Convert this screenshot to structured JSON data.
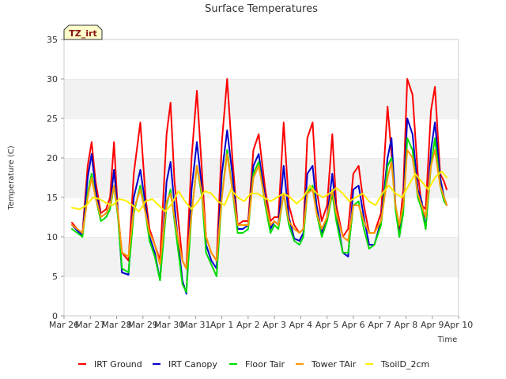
{
  "chart_data": {
    "type": "line",
    "title": "Surface Temperatures",
    "xlabel": "Time",
    "ylabel": "Temperature (C)",
    "badge": "TZ_irt",
    "ylim": [
      0,
      35
    ],
    "yticks": [
      0,
      5,
      10,
      15,
      20,
      25,
      30,
      35
    ],
    "xlim": [
      0,
      15
    ],
    "xtick_labels": [
      "Mar 26",
      "Mar 27",
      "Mar 28",
      "Mar 29",
      "Mar 30",
      "Mar 31",
      "Apr 1",
      "Apr 2",
      "Apr 3",
      "Apr 4",
      "Apr 5",
      "Apr 6",
      "Apr 7",
      "Apr 8",
      "Apr 9",
      "Apr 10"
    ],
    "grid": "horizontal bands",
    "legend_position": "bottom",
    "series": [
      {
        "name": "IRT Ground",
        "color": "#ff0000",
        "x": [
          0.3,
          0.5,
          0.7,
          0.9,
          1.05,
          1.2,
          1.4,
          1.6,
          1.75,
          1.9,
          2.05,
          2.2,
          2.45,
          2.65,
          2.9,
          3.1,
          3.25,
          3.45,
          3.65,
          3.9,
          4.05,
          4.2,
          4.35,
          4.5,
          4.65,
          4.85,
          5.05,
          5.25,
          5.4,
          5.6,
          5.8,
          6.0,
          6.2,
          6.4,
          6.6,
          6.8,
          7.0,
          7.2,
          7.4,
          7.65,
          7.85,
          8.0,
          8.15,
          8.35,
          8.55,
          8.75,
          8.95,
          9.1,
          9.25,
          9.45,
          9.6,
          9.8,
          10.0,
          10.2,
          10.35,
          10.6,
          10.8,
          11.0,
          11.2,
          11.4,
          11.6,
          11.8,
          12.05,
          12.3,
          12.45,
          12.6,
          12.75,
          12.9,
          13.05,
          13.25,
          13.45,
          13.6,
          13.75,
          13.95,
          14.1,
          14.3,
          14.45,
          14.55
        ],
        "y": [
          11.8,
          11.0,
          10.5,
          19.0,
          22.0,
          17.0,
          13.0,
          13.5,
          15.0,
          22.0,
          13.0,
          8.0,
          7.0,
          18.0,
          24.5,
          15.0,
          11.0,
          9.0,
          7.0,
          23.0,
          27.0,
          17.0,
          12.0,
          7.0,
          6.0,
          20.0,
          28.5,
          18.0,
          10.0,
          8.0,
          7.0,
          22.0,
          30.0,
          20.0,
          11.5,
          12.0,
          12.0,
          21.0,
          23.0,
          16.0,
          12.0,
          12.5,
          12.5,
          24.5,
          14.0,
          11.5,
          10.5,
          11.0,
          22.5,
          24.5,
          16.0,
          12.0,
          14.0,
          23.0,
          14.0,
          10.0,
          11.0,
          18.0,
          19.0,
          14.0,
          10.5,
          10.5,
          13.0,
          26.5,
          20.5,
          14.0,
          11.0,
          16.0,
          30.0,
          28.0,
          18.0,
          14.0,
          13.5,
          26.0,
          29.0,
          18.0,
          17.0,
          16.0
        ]
      },
      {
        "name": "IRT Canopy",
        "color": "#0000cc",
        "x": [
          0.3,
          0.5,
          0.7,
          0.9,
          1.05,
          1.2,
          1.4,
          1.6,
          1.75,
          1.9,
          2.05,
          2.2,
          2.45,
          2.65,
          2.9,
          3.1,
          3.25,
          3.45,
          3.65,
          3.9,
          4.05,
          4.2,
          4.35,
          4.5,
          4.65,
          4.85,
          5.05,
          5.25,
          5.4,
          5.6,
          5.8,
          6.0,
          6.2,
          6.4,
          6.6,
          6.8,
          7.0,
          7.2,
          7.4,
          7.65,
          7.85,
          8.0,
          8.15,
          8.35,
          8.55,
          8.75,
          8.95,
          9.1,
          9.25,
          9.45,
          9.6,
          9.8,
          10.0,
          10.2,
          10.35,
          10.6,
          10.8,
          11.0,
          11.2,
          11.4,
          11.6,
          11.8,
          12.05,
          12.3,
          12.45,
          12.6,
          12.75,
          12.9,
          13.05,
          13.25,
          13.45,
          13.6,
          13.75,
          13.95,
          14.1,
          14.3,
          14.45,
          14.55
        ],
        "y": [
          11.5,
          10.8,
          10.2,
          17.5,
          20.5,
          16.0,
          12.5,
          13.0,
          14.0,
          18.5,
          13.0,
          5.5,
          5.2,
          15.0,
          18.5,
          14.0,
          10.0,
          8.0,
          4.5,
          17.0,
          19.5,
          14.0,
          9.0,
          4.5,
          2.8,
          16.0,
          22.0,
          16.0,
          9.0,
          7.0,
          6.0,
          18.0,
          23.5,
          18.0,
          11.0,
          11.0,
          11.5,
          19.0,
          20.5,
          15.0,
          11.0,
          12.0,
          11.5,
          19.0,
          12.5,
          9.8,
          9.5,
          10.5,
          18.0,
          19.0,
          14.0,
          10.5,
          12.5,
          18.0,
          13.0,
          8.0,
          7.5,
          16.0,
          16.5,
          12.5,
          9.0,
          9.0,
          12.0,
          20.0,
          22.5,
          14.0,
          10.0,
          14.0,
          25.0,
          23.0,
          16.0,
          14.5,
          11.0,
          21.0,
          24.5,
          17.5,
          15.0,
          14.0
        ]
      },
      {
        "name": "Floor Tair",
        "color": "#00dd00",
        "x": [
          0.3,
          0.5,
          0.7,
          0.9,
          1.05,
          1.2,
          1.4,
          1.6,
          1.75,
          1.9,
          2.05,
          2.2,
          2.45,
          2.65,
          2.9,
          3.1,
          3.25,
          3.45,
          3.65,
          3.9,
          4.05,
          4.2,
          4.35,
          4.5,
          4.65,
          4.85,
          5.05,
          5.25,
          5.4,
          5.6,
          5.8,
          6.0,
          6.2,
          6.4,
          6.6,
          6.8,
          7.0,
          7.2,
          7.4,
          7.65,
          7.85,
          8.0,
          8.15,
          8.35,
          8.55,
          8.75,
          8.95,
          9.1,
          9.25,
          9.45,
          9.6,
          9.8,
          10.0,
          10.2,
          10.35,
          10.6,
          10.8,
          11.0,
          11.2,
          11.4,
          11.6,
          11.8,
          12.05,
          12.3,
          12.45,
          12.6,
          12.75,
          12.9,
          13.05,
          13.25,
          13.45,
          13.6,
          13.75,
          13.95,
          14.1,
          14.3,
          14.45,
          14.55
        ],
        "y": [
          11.0,
          10.5,
          10.0,
          15.5,
          18.0,
          15.0,
          12.0,
          12.5,
          13.5,
          16.5,
          12.5,
          6.0,
          5.5,
          13.0,
          16.5,
          13.0,
          9.5,
          7.5,
          4.5,
          14.0,
          16.0,
          12.0,
          8.0,
          4.0,
          3.0,
          13.0,
          19.0,
          15.0,
          8.0,
          6.5,
          5.0,
          15.0,
          21.0,
          16.0,
          10.5,
          10.5,
          11.0,
          18.0,
          19.5,
          14.0,
          10.5,
          11.5,
          11.0,
          15.5,
          11.5,
          9.5,
          9.0,
          10.0,
          15.5,
          16.5,
          13.0,
          10.0,
          12.0,
          15.5,
          12.0,
          8.0,
          8.0,
          14.0,
          14.5,
          11.0,
          8.5,
          9.0,
          11.5,
          19.0,
          20.0,
          13.5,
          10.0,
          13.0,
          22.5,
          21.0,
          15.0,
          13.5,
          11.0,
          19.0,
          22.5,
          16.5,
          14.5,
          14.0
        ]
      },
      {
        "name": "Tower TAir",
        "color": "#ff9900",
        "x": [
          0.3,
          0.5,
          0.7,
          0.9,
          1.05,
          1.2,
          1.4,
          1.6,
          1.75,
          1.9,
          2.05,
          2.2,
          2.45,
          2.65,
          2.9,
          3.1,
          3.25,
          3.45,
          3.65,
          3.9,
          4.05,
          4.2,
          4.35,
          4.5,
          4.65,
          4.85,
          5.05,
          5.25,
          5.4,
          5.6,
          5.8,
          6.0,
          6.2,
          6.4,
          6.6,
          6.8,
          7.0,
          7.2,
          7.4,
          7.65,
          7.85,
          8.0,
          8.15,
          8.35,
          8.55,
          8.75,
          8.95,
          9.1,
          9.25,
          9.45,
          9.6,
          9.8,
          10.0,
          10.2,
          10.35,
          10.6,
          10.8,
          11.0,
          11.2,
          11.4,
          11.6,
          11.8,
          12.05,
          12.3,
          12.45,
          12.6,
          12.75,
          12.9,
          13.05,
          13.25,
          13.45,
          13.6,
          13.75,
          13.95,
          14.1,
          14.3,
          14.45,
          14.55
        ],
        "y": [
          11.5,
          11.0,
          10.5,
          15.0,
          17.5,
          15.0,
          12.5,
          13.0,
          14.0,
          16.5,
          13.0,
          8.0,
          7.5,
          13.5,
          16.0,
          13.0,
          10.5,
          9.0,
          6.5,
          14.5,
          15.5,
          12.5,
          9.5,
          7.0,
          6.0,
          13.0,
          19.0,
          15.5,
          10.0,
          8.0,
          7.0,
          15.0,
          20.5,
          16.0,
          11.5,
          11.5,
          11.5,
          17.5,
          19.0,
          14.5,
          11.5,
          12.0,
          11.5,
          15.5,
          12.0,
          11.0,
          10.5,
          11.0,
          15.5,
          16.0,
          13.0,
          11.0,
          12.5,
          16.0,
          13.0,
          10.0,
          9.5,
          14.0,
          14.0,
          12.0,
          10.5,
          10.5,
          12.0,
          17.5,
          19.5,
          14.0,
          11.5,
          14.0,
          21.0,
          20.0,
          15.5,
          14.0,
          12.5,
          19.0,
          21.0,
          16.5,
          15.0,
          14.0
        ]
      },
      {
        "name": "TsoilD_2cm",
        "color": "#ffee00",
        "x": [
          0.3,
          0.6,
          0.85,
          1.1,
          1.35,
          1.6,
          1.85,
          2.1,
          2.35,
          2.6,
          2.85,
          3.1,
          3.35,
          3.6,
          3.85,
          4.1,
          4.35,
          4.6,
          4.85,
          5.1,
          5.35,
          5.6,
          5.85,
          6.1,
          6.35,
          6.6,
          6.85,
          7.1,
          7.35,
          7.6,
          7.85,
          8.1,
          8.35,
          8.6,
          8.85,
          9.1,
          9.35,
          9.6,
          9.85,
          10.1,
          10.35,
          10.6,
          10.85,
          11.1,
          11.35,
          11.6,
          11.85,
          12.1,
          12.35,
          12.6,
          12.85,
          13.1,
          13.35,
          13.6,
          13.85,
          14.1,
          14.35,
          14.55
        ],
        "y": [
          13.7,
          13.5,
          14.0,
          15.0,
          14.8,
          14.3,
          14.0,
          14.8,
          14.6,
          14.0,
          13.2,
          14.5,
          14.8,
          14.0,
          13.2,
          14.2,
          15.8,
          14.5,
          13.5,
          14.5,
          15.8,
          15.5,
          14.5,
          14.0,
          16.0,
          15.0,
          14.5,
          15.5,
          15.5,
          15.0,
          14.5,
          15.0,
          15.5,
          15.0,
          14.2,
          15.0,
          16.5,
          15.5,
          15.0,
          15.5,
          16.2,
          15.5,
          14.5,
          15.0,
          15.5,
          14.5,
          14.0,
          15.5,
          16.5,
          15.5,
          15.0,
          16.5,
          18.0,
          17.0,
          16.0,
          17.5,
          18.3,
          17.5
        ]
      }
    ]
  }
}
